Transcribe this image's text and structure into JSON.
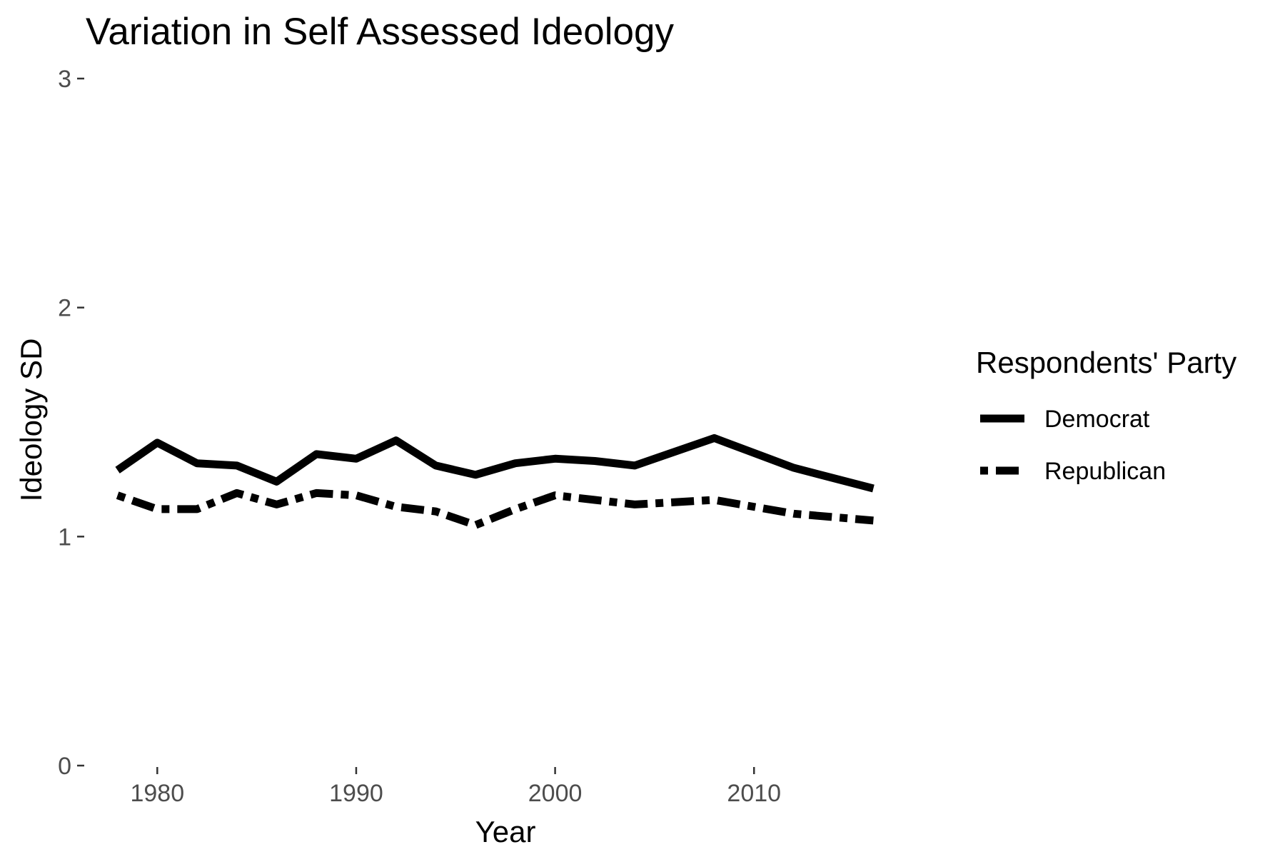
{
  "chart_data": {
    "type": "line",
    "title": "Variation in Self Assessed Ideology",
    "xlabel": "Year",
    "ylabel": "Ideology SD",
    "xlim": [
      1976.4,
      2017.6
    ],
    "ylim": [
      0,
      3
    ],
    "x_ticks": [
      1980,
      1990,
      2000,
      2010
    ],
    "y_ticks": [
      0,
      1,
      2,
      3
    ],
    "grid": false,
    "legend": {
      "title": "Respondents' Party",
      "position": "right"
    },
    "x": [
      1978,
      1980,
      1982,
      1984,
      1986,
      1988,
      1990,
      1992,
      1994,
      1996,
      1998,
      2000,
      2002,
      2004,
      2008,
      2012,
      2016
    ],
    "series": [
      {
        "name": "Democrat",
        "line_style": "solid",
        "color": "#000000",
        "values": [
          1.29,
          1.41,
          1.32,
          1.31,
          1.24,
          1.36,
          1.34,
          1.42,
          1.31,
          1.27,
          1.32,
          1.34,
          1.33,
          1.31,
          1.43,
          1.3,
          1.21
        ]
      },
      {
        "name": "Republican",
        "line_style": "dotdash",
        "color": "#000000",
        "values": [
          1.18,
          1.12,
          1.12,
          1.19,
          1.14,
          1.19,
          1.18,
          1.13,
          1.11,
          1.05,
          1.12,
          1.18,
          1.16,
          1.14,
          1.16,
          1.1,
          1.07
        ]
      }
    ]
  }
}
